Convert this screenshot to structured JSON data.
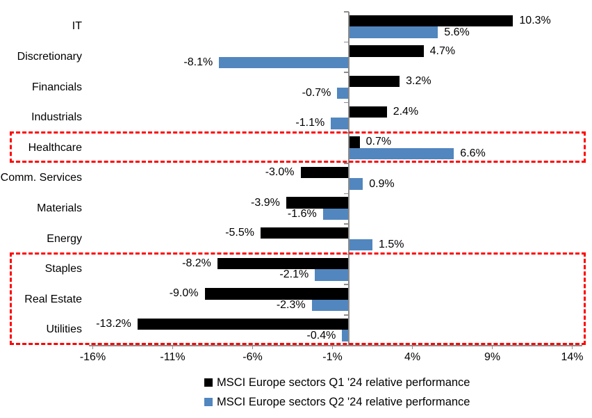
{
  "chart_data": {
    "type": "bar",
    "orientation": "horizontal",
    "title": "",
    "categories": [
      "IT",
      "Discretionary",
      "Financials",
      "Industrials",
      "Healthcare",
      "Comm. Services",
      "Materials",
      "Energy",
      "Staples",
      "Real Estate",
      "Utilities"
    ],
    "series": [
      {
        "name": "MSCI Europe sectors Q1 '24 relative performance",
        "color": "#000000",
        "values": [
          10.3,
          4.7,
          3.2,
          2.4,
          0.7,
          -3.0,
          -3.9,
          -5.5,
          -8.2,
          -9.0,
          -13.2
        ],
        "labels": [
          "10.3%",
          "4.7%",
          "3.2%",
          "2.4%",
          "0.7%",
          "-3.0%",
          "-3.9%",
          "-5.5%",
          "-8.2%",
          "-9.0%",
          "-13.2%"
        ]
      },
      {
        "name": "MSCI Europe sectors Q2 '24 relative performance",
        "color": "#5286be",
        "values": [
          5.6,
          -8.1,
          -0.7,
          -1.1,
          6.6,
          0.9,
          -1.6,
          1.5,
          -2.1,
          -2.3,
          -0.4
        ],
        "labels": [
          "5.6%",
          "-8.1%",
          "-0.7%",
          "-1.1%",
          "6.6%",
          "0.9%",
          "-1.6%",
          "1.5%",
          "-2.1%",
          "-2.3%",
          "-0.4%"
        ]
      }
    ],
    "x_axis": {
      "min": -16,
      "max": 14,
      "tick_values": [
        -16,
        -11,
        -6,
        -1,
        4,
        9,
        14
      ],
      "tick_labels": [
        "-16%",
        "-11%",
        "-6%",
        "-1%",
        "4%",
        "9%",
        "14%"
      ]
    },
    "grid": "off",
    "legend_position": "bottom",
    "annotations": [
      {
        "name": "highlight-box-healthcare",
        "category_start": "Healthcare",
        "category_end": "Healthcare",
        "color": "#fe0000"
      },
      {
        "name": "highlight-box-defensives",
        "category_start": "Staples",
        "category_end": "Utilities",
        "color": "#fe0000"
      }
    ],
    "colors": {
      "q1_bar": "#000000",
      "q2_bar": "#5286be",
      "axis": "#8c8c8c",
      "highlight": "#fe0000",
      "background": "#ffffff"
    }
  }
}
